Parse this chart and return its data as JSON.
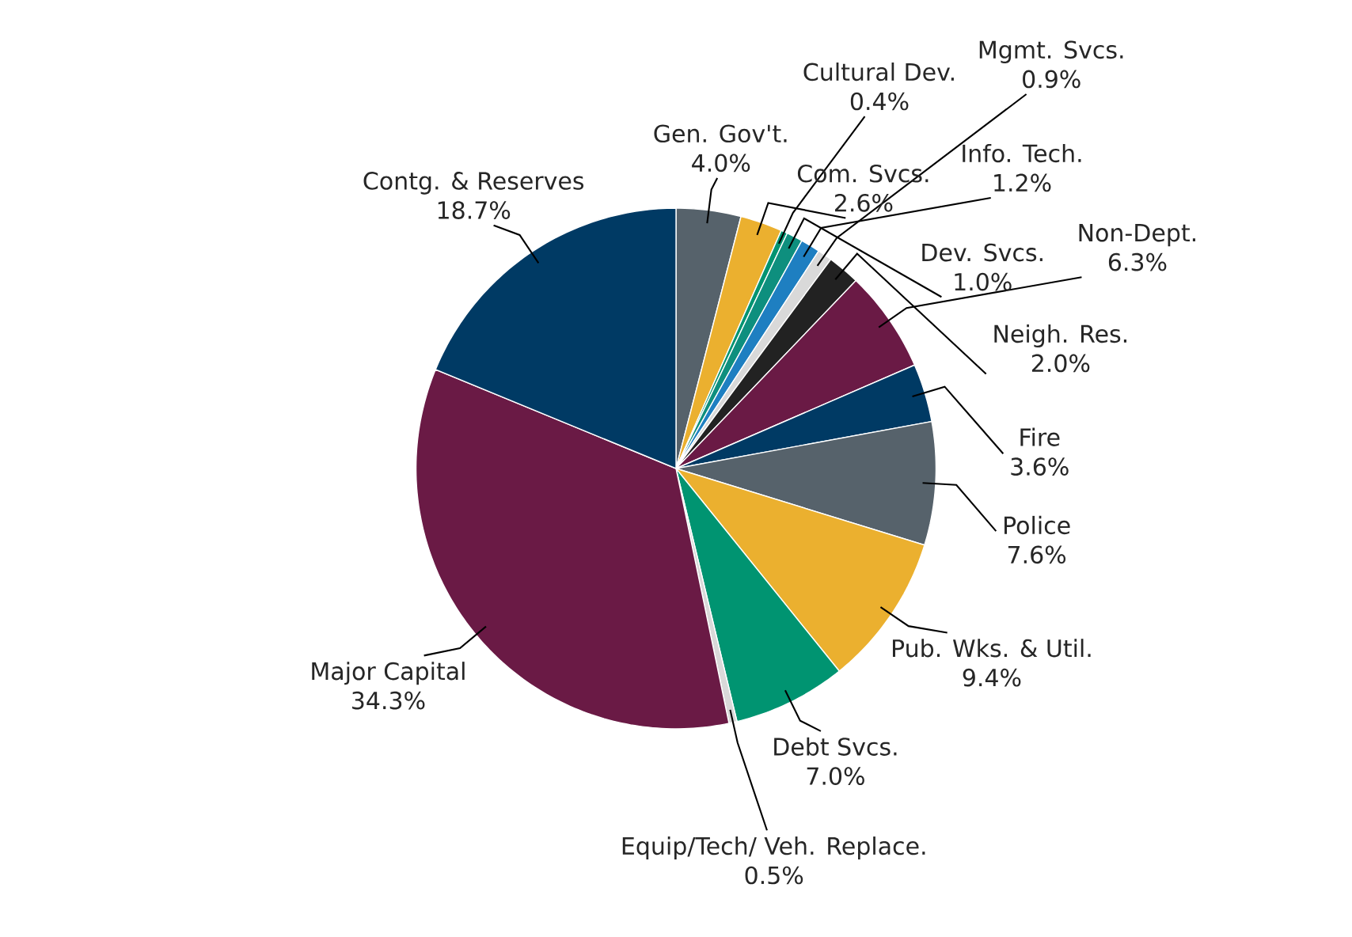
{
  "chart_data": {
    "type": "pie",
    "categories": [
      "Gen. Gov't.",
      "Com. Svcs.",
      "Cultural Dev.",
      "Dev. Svcs.",
      "Info. Tech.",
      "Mgmt. Svcs.",
      "Neigh. Res.",
      "Non-Dept.",
      "Fire",
      "Police",
      "Pub. Wks. & Util.",
      "Debt Svcs.",
      "Equip/Tech/ Veh. Replace.",
      "Major Capital",
      "Contg. & Reserves"
    ],
    "values": [
      4.0,
      2.6,
      0.4,
      1.0,
      1.2,
      0.9,
      2.0,
      6.3,
      3.6,
      7.6,
      9.4,
      7.0,
      0.5,
      34.3,
      18.7
    ],
    "value_labels": [
      "4.0%",
      "2.6%",
      "0.4%",
      "1.0%",
      "1.2%",
      "0.9%",
      "2.0%",
      "6.3%",
      "3.6%",
      "7.6%",
      "9.4%",
      "7.0%",
      "0.5%",
      "34.3%",
      "18.7%"
    ],
    "colors": [
      "#56626b",
      "#ebb02f",
      "#009471",
      "#0e8f7e",
      "#1e7fc1",
      "#d9d9d9",
      "#222222",
      "#6a1a45",
      "#003a64",
      "#56626b",
      "#ebb02f",
      "#009471",
      "#d9d9d9",
      "#6a1a45",
      "#003a64"
    ]
  }
}
